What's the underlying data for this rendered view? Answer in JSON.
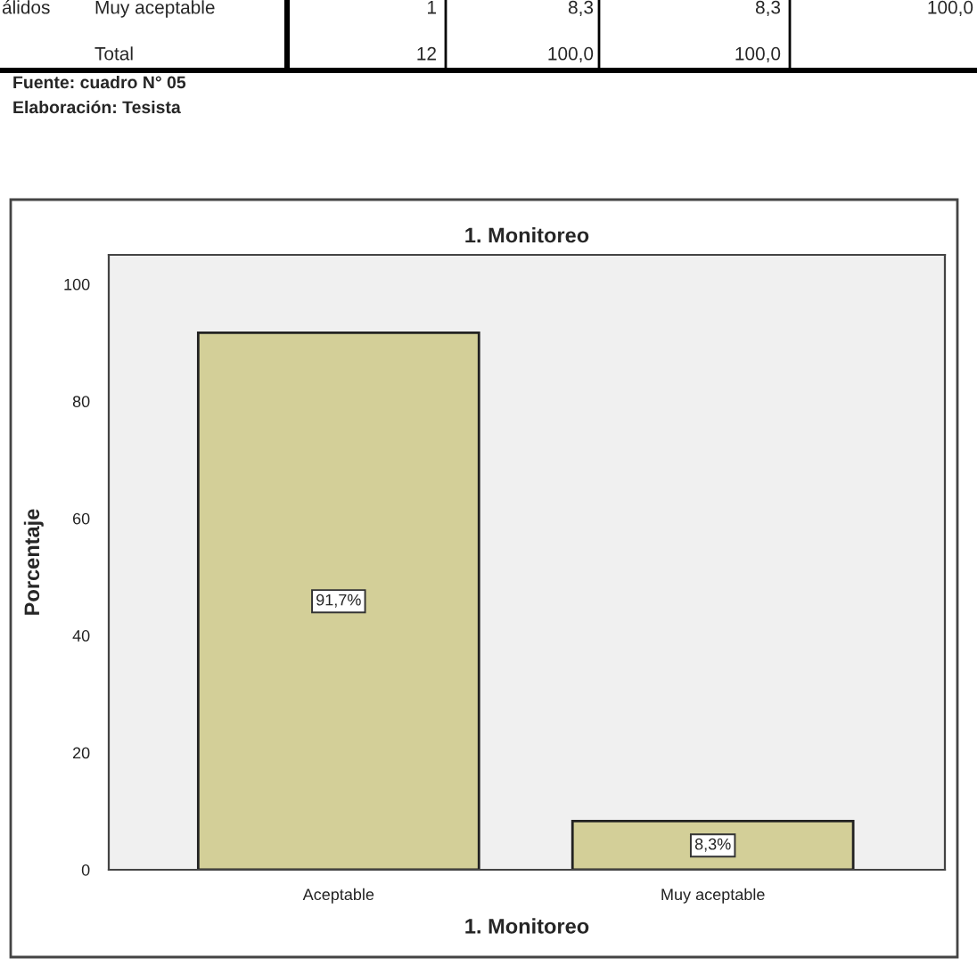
{
  "chart_data": {
    "type": "bar",
    "title": "1. Monitoreo",
    "xlabel": "1. Monitoreo",
    "ylabel": "Porcentaje",
    "categories": [
      "Aceptable",
      "Muy aceptable"
    ],
    "values": [
      91.7,
      8.3
    ],
    "color": "#d3cf98",
    "value_labels": [
      "91,7%",
      "8,3%"
    ],
    "ylim": [
      0,
      105
    ],
    "yticks": [
      0,
      20,
      40,
      60,
      80,
      100
    ],
    "grid": false,
    "annotations": [
      "álidos",
      "Muy aceptable",
      "1",
      "8,3",
      "8,3",
      "100,0",
      "Total",
      "12",
      "100,0",
      "100,0",
      "Fuente: cuadro N° 05",
      "Elaboración: Tesista"
    ]
  }
}
